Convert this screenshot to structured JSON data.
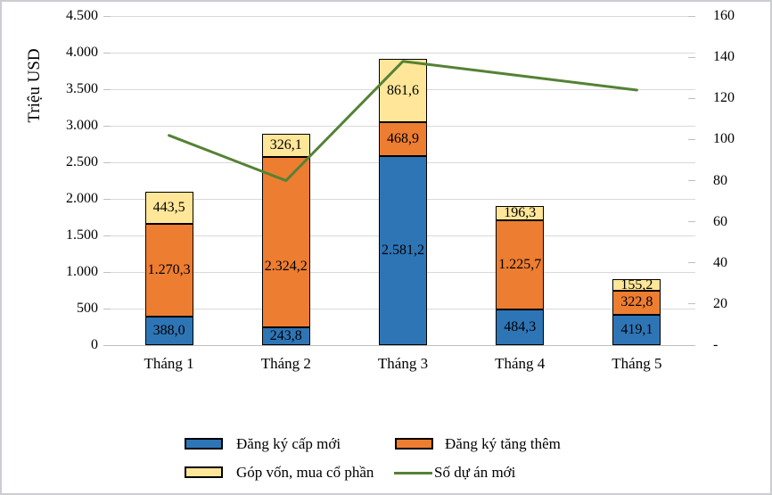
{
  "page": {
    "background": "#ffffff",
    "border_color": "#cbcdd0"
  },
  "chart_data": {
    "type": "combo: stacked vertical bars (left axis) + line (right axis)",
    "title": "",
    "categories": [
      "Tháng 1",
      "Tháng 2",
      "Tháng 3",
      "Tháng 4",
      "Tháng 5"
    ],
    "bar_series": [
      {
        "name": "Đăng ký cấp mới",
        "color": "#2E75B6",
        "values": [
          388.0,
          243.8,
          2581.2,
          484.3,
          419.1
        ],
        "labels": [
          "388,0",
          "243,8",
          "2.581,2",
          "484,3",
          "419,1"
        ],
        "label_dy": [
          0,
          0,
          0,
          0,
          0
        ]
      },
      {
        "name": "Đăng ký tăng thêm",
        "color": "#ED7D31",
        "values": [
          1270.3,
          2324.2,
          468.9,
          1225.7,
          322.8
        ],
        "labels": [
          "1.270,3",
          "2.324,2",
          "468,9",
          "1.225,7",
          "322,8"
        ],
        "label_dy": [
          0,
          27,
          0,
          0,
          0
        ]
      },
      {
        "name": "Góp vốn, mua cổ phần",
        "color": "#FFE699",
        "values": [
          443.5,
          326.1,
          861.6,
          196.3,
          155.2
        ],
        "labels": [
          "443,5",
          "326,1",
          "861,6",
          "196,3",
          "155,2"
        ],
        "label_dy": [
          0,
          0,
          0,
          0,
          0
        ]
      }
    ],
    "line_series": {
      "name": "Số dự án mới",
      "color": "#548235",
      "axis": "right",
      "values": [
        102,
        80,
        138,
        131,
        124
      ]
    },
    "left_axis": {
      "title": "Triệu USD",
      "min": 0,
      "max": 4500,
      "step": 500,
      "tick_labels": [
        "0",
        "500",
        "1.000",
        "1.500",
        "2.000",
        "2.500",
        "3.000",
        "3.500",
        "4.000",
        "4.500"
      ]
    },
    "right_axis": {
      "min": 0,
      "max": 160,
      "step": 20,
      "tick_labels": [
        "-",
        "20",
        "40",
        "60",
        "80",
        "100",
        "120",
        "140",
        "160"
      ]
    },
    "grid": {
      "color": "#D9D9D9",
      "zero_line_color": "#BFBFBF",
      "bar_border_color": "#000000"
    },
    "legend_position": "bottom"
  }
}
